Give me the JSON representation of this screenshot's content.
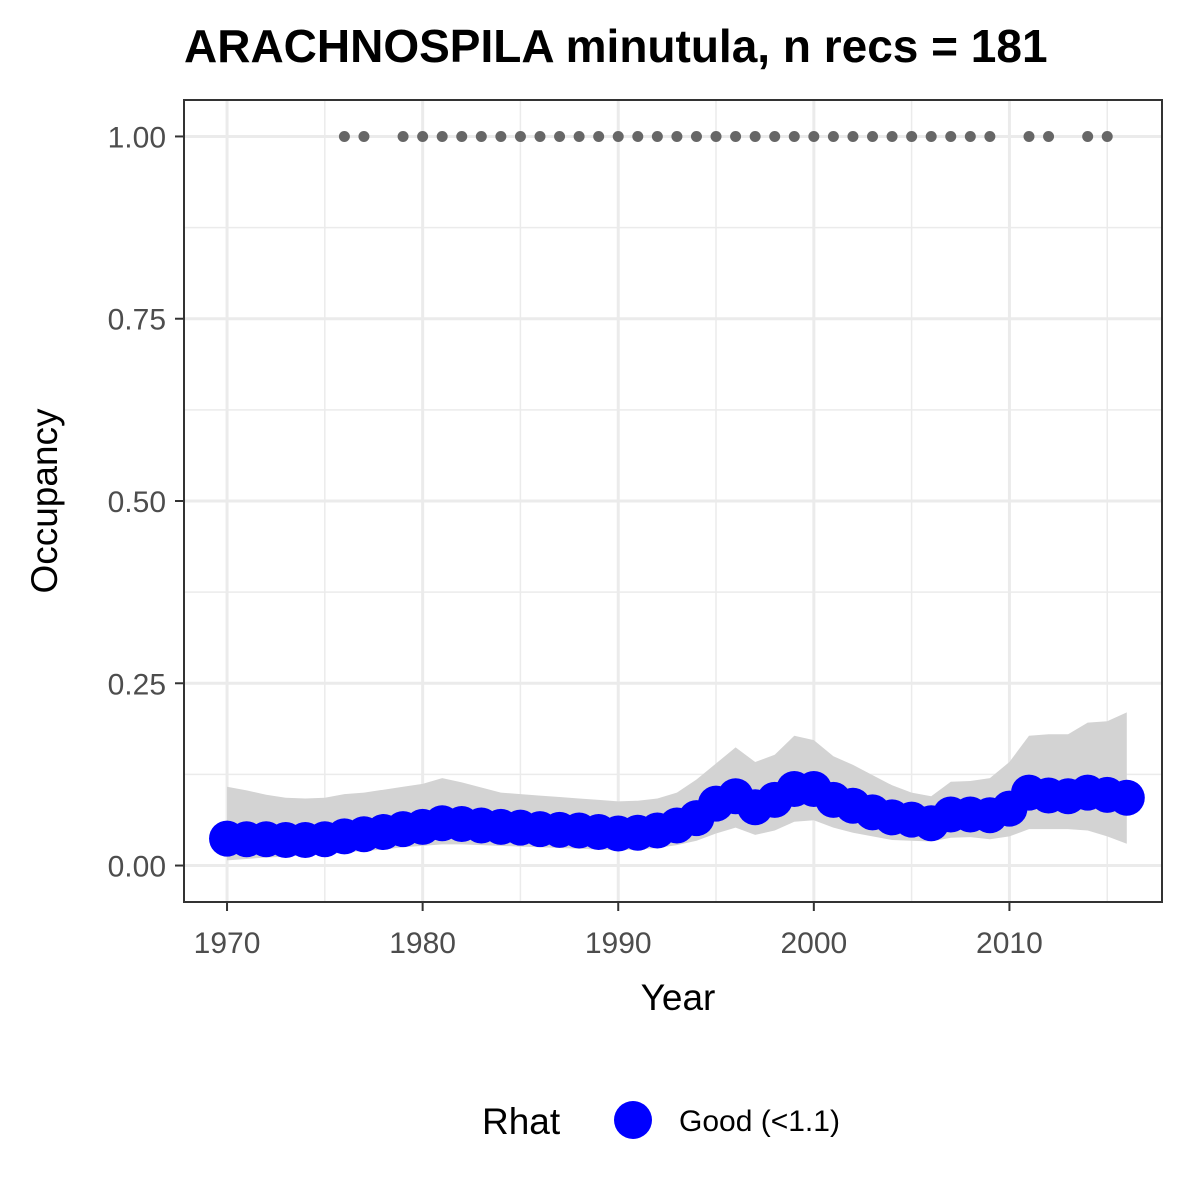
{
  "chart_data": {
    "type": "line",
    "title": "ARACHNOSPILA minutula, n recs = 181",
    "xlabel": "Year",
    "ylabel": "Occupancy",
    "xlim": [
      1967.8,
      2017.8
    ],
    "ylim": [
      -0.05,
      1.05
    ],
    "x_ticks": [
      1970,
      1980,
      1990,
      2000,
      2010
    ],
    "y_ticks": [
      0.0,
      0.25,
      0.5,
      0.75,
      1.0
    ],
    "y_tick_labels": [
      "0.00",
      "0.25",
      "0.50",
      "0.75",
      "1.00"
    ],
    "grid": true,
    "x": [
      1970,
      1971,
      1972,
      1973,
      1974,
      1975,
      1976,
      1977,
      1978,
      1979,
      1980,
      1981,
      1982,
      1983,
      1984,
      1985,
      1986,
      1987,
      1988,
      1989,
      1990,
      1991,
      1992,
      1993,
      1994,
      1995,
      1996,
      1997,
      1998,
      1999,
      2000,
      2001,
      2002,
      2003,
      2004,
      2005,
      2006,
      2007,
      2008,
      2009,
      2010,
      2011,
      2012,
      2013,
      2014,
      2015,
      2016
    ],
    "series": [
      {
        "name": "Good (<1.1)",
        "color": "#0000ff",
        "values": [
          0.037,
          0.036,
          0.036,
          0.035,
          0.035,
          0.036,
          0.04,
          0.043,
          0.046,
          0.05,
          0.053,
          0.058,
          0.057,
          0.055,
          0.053,
          0.052,
          0.05,
          0.049,
          0.048,
          0.046,
          0.044,
          0.045,
          0.048,
          0.055,
          0.065,
          0.085,
          0.095,
          0.08,
          0.09,
          0.105,
          0.105,
          0.09,
          0.082,
          0.073,
          0.066,
          0.063,
          0.058,
          0.07,
          0.07,
          0.069,
          0.078,
          0.1,
          0.096,
          0.095,
          0.1,
          0.097,
          0.093
        ]
      }
    ],
    "confidence_band": {
      "upper": [
        0.108,
        0.103,
        0.097,
        0.093,
        0.092,
        0.093,
        0.098,
        0.1,
        0.104,
        0.108,
        0.112,
        0.12,
        0.114,
        0.107,
        0.1,
        0.098,
        0.096,
        0.094,
        0.092,
        0.09,
        0.088,
        0.089,
        0.092,
        0.1,
        0.118,
        0.14,
        0.162,
        0.142,
        0.152,
        0.178,
        0.172,
        0.15,
        0.138,
        0.124,
        0.11,
        0.1,
        0.095,
        0.115,
        0.116,
        0.12,
        0.142,
        0.178,
        0.18,
        0.18,
        0.196,
        0.198,
        0.21
      ],
      "lower": [
        0.007,
        0.009,
        0.011,
        0.012,
        0.014,
        0.015,
        0.018,
        0.02,
        0.022,
        0.025,
        0.027,
        0.029,
        0.029,
        0.028,
        0.027,
        0.026,
        0.025,
        0.024,
        0.023,
        0.022,
        0.021,
        0.022,
        0.024,
        0.028,
        0.034,
        0.044,
        0.052,
        0.042,
        0.048,
        0.06,
        0.062,
        0.052,
        0.045,
        0.04,
        0.035,
        0.034,
        0.033,
        0.038,
        0.039,
        0.036,
        0.04,
        0.05,
        0.05,
        0.05,
        0.048,
        0.04,
        0.03
      ]
    },
    "record_years": [
      1976,
      1977,
      1979,
      1980,
      1981,
      1982,
      1983,
      1984,
      1985,
      1986,
      1987,
      1988,
      1989,
      1990,
      1991,
      1992,
      1993,
      1994,
      1995,
      1996,
      1997,
      1998,
      1999,
      2000,
      2001,
      2002,
      2003,
      2004,
      2005,
      2006,
      2007,
      2008,
      2009,
      2011,
      2012,
      2014,
      2015
    ],
    "record_value": 1.0,
    "record_color": "#666666",
    "band_color": "#d3d3d3",
    "legend": {
      "title": "Rhat",
      "placement": "bottom",
      "items": [
        {
          "label": "Good (<1.1)",
          "color": "#0000ff"
        }
      ]
    }
  }
}
